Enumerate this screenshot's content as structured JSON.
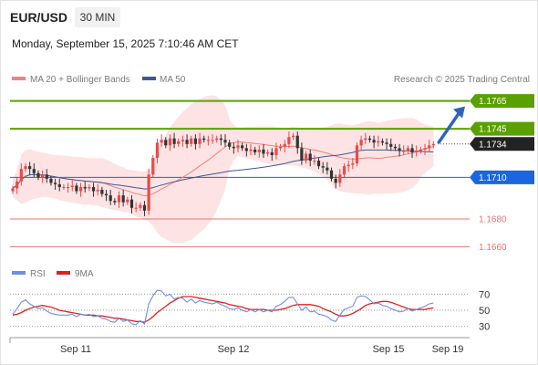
{
  "header": {
    "symbol": "EUR/USD",
    "timeframe": "30 MIN",
    "datetime": "Monday, September 15, 2025 7:10:46 AM CET"
  },
  "legend": {
    "ma20": "MA 20 + Bollinger Bands",
    "ma50": "MA 50",
    "credit": "Research © 2025 Trading Central",
    "rsi": "RSI",
    "rsi_ma": "9MA"
  },
  "colors": {
    "up": "#e84a4a",
    "down": "#333333",
    "ma20": "#f08080",
    "ma50": "#3a5a98",
    "bollinger": "#fde3e3",
    "target": "#5aa000",
    "pivot": "#1a66e0",
    "support": "#ef7070",
    "arrow": "#2f63b8",
    "rsi": "#6f8fe0",
    "rsi_ma": "#e02020"
  },
  "chart_data": [
    {
      "type": "candlestick",
      "title": "EUR/USD",
      "x_labels": [
        "Sep 11",
        "Sep 12",
        "Sep 15",
        "Sep 19"
      ],
      "ylim": [
        1.1655,
        1.1772
      ],
      "levels": [
        {
          "value": 1.1765,
          "label": "1.1765",
          "role": "target"
        },
        {
          "value": 1.1745,
          "label": "1.1745",
          "role": "target"
        },
        {
          "value": 1.1734,
          "label": "1.1734",
          "role": "last price"
        },
        {
          "value": 1.171,
          "label": "1.1710",
          "role": "pivot"
        },
        {
          "value": 1.168,
          "label": "1.1680",
          "role": "support"
        },
        {
          "value": 1.166,
          "label": "1.1660",
          "role": "support"
        }
      ],
      "series": [
        {
          "name": "MA 20"
        },
        {
          "name": "MA 50"
        }
      ],
      "close": [
        1.1702,
        1.1707,
        1.1716,
        1.1718,
        1.1716,
        1.1713,
        1.171,
        1.1712,
        1.1709,
        1.1706,
        1.1705,
        1.1703,
        1.1703,
        1.1703,
        1.1704,
        1.17,
        1.1703,
        1.1702,
        1.1703,
        1.17,
        1.1701,
        1.1698,
        1.1697,
        1.1693,
        1.1692,
        1.1697,
        1.1692,
        1.1694,
        1.1688,
        1.1688,
        1.169,
        1.1686,
        1.1712,
        1.1724,
        1.1735,
        1.1737,
        1.1733,
        1.1738,
        1.1734,
        1.1736,
        1.1737,
        1.1734,
        1.1738,
        1.1734,
        1.1738,
        1.1737,
        1.1737,
        1.1737,
        1.1738,
        1.1737,
        1.1735,
        1.1732,
        1.1731,
        1.1733,
        1.1731,
        1.1729,
        1.173,
        1.1728,
        1.173,
        1.1727,
        1.1728,
        1.1726,
        1.1731,
        1.1732,
        1.1734,
        1.1739,
        1.174,
        1.1731,
        1.1722,
        1.1727,
        1.1722,
        1.1722,
        1.1718,
        1.1717,
        1.1715,
        1.1709,
        1.1706,
        1.1712,
        1.1718,
        1.1719,
        1.172,
        1.1733,
        1.1737,
        1.1738,
        1.1737,
        1.1735,
        1.1736,
        1.1735,
        1.1734,
        1.1732,
        1.1731,
        1.1729,
        1.1729,
        1.1731,
        1.1728,
        1.1729,
        1.173,
        1.1731,
        1.1733,
        1.1734
      ],
      "rsi": {
        "levels": [
          70,
          50,
          30
        ],
        "rsi": [
          45,
          52,
          60,
          63,
          58,
          55,
          52,
          53,
          49,
          46,
          45,
          44,
          44,
          44,
          45,
          42,
          45,
          44,
          45,
          42,
          43,
          40,
          39,
          36,
          35,
          40,
          36,
          38,
          33,
          32,
          37,
          33,
          58,
          68,
          75,
          74,
          68,
          70,
          64,
          66,
          65,
          60,
          64,
          59,
          62,
          60,
          59,
          58,
          60,
          57,
          55,
          52,
          51,
          53,
          50,
          48,
          51,
          48,
          51,
          48,
          50,
          48,
          55,
          57,
          61,
          66,
          66,
          58,
          50,
          54,
          48,
          49,
          45,
          44,
          42,
          38,
          36,
          44,
          51,
          53,
          55,
          66,
          68,
          67,
          63,
          58,
          59,
          56,
          55,
          52,
          50,
          48,
          49,
          52,
          49,
          51,
          53,
          55,
          58,
          59
        ],
        "ma9": [
          44,
          45,
          47,
          50,
          52,
          54,
          55,
          56,
          55,
          54,
          52,
          50,
          49,
          48,
          47,
          46,
          45,
          44,
          44,
          44,
          43,
          43,
          42,
          41,
          40,
          40,
          39,
          38,
          37,
          36,
          36,
          35,
          38,
          42,
          47,
          51,
          55,
          59,
          62,
          65,
          67,
          67,
          67,
          66,
          65,
          64,
          63,
          62,
          61,
          60,
          59,
          57,
          56,
          55,
          54,
          52,
          51,
          51,
          51,
          51,
          50,
          50,
          50,
          51,
          52,
          54,
          56,
          57,
          57,
          57,
          57,
          56,
          55,
          52,
          50,
          48,
          45,
          43,
          43,
          44,
          46,
          49,
          52,
          56,
          58,
          59,
          60,
          61,
          61,
          60,
          58,
          56,
          54,
          52,
          51,
          51,
          51,
          51,
          52,
          53
        ]
      }
    }
  ]
}
